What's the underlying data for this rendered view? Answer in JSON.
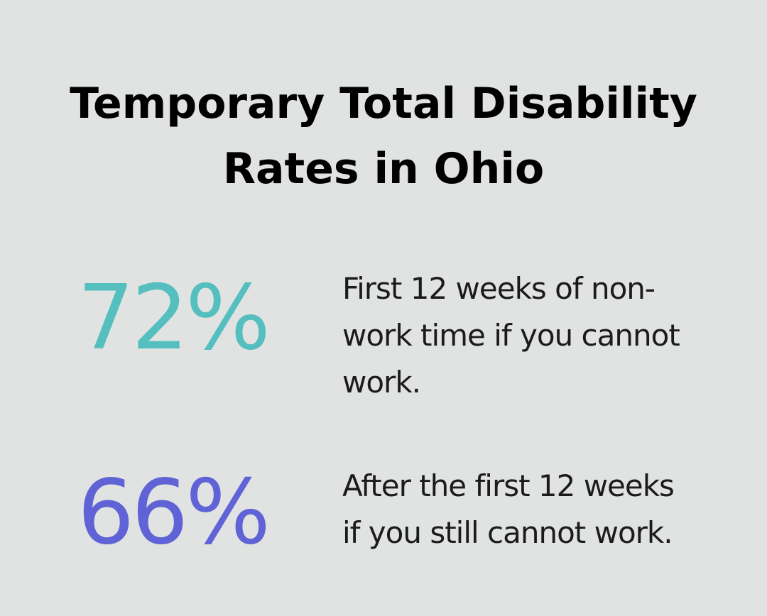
{
  "title": {
    "line1": "Temporary Total Disability",
    "line2": "Rates in Ohio"
  },
  "stats": [
    {
      "value": "72%",
      "color": "#55bfbf",
      "lines": [
        "First 12 weeks of non-",
        "work time if you cannot",
        "work."
      ]
    },
    {
      "value": "66%",
      "color": "#5f63d6",
      "lines": [
        "After the first 12 weeks",
        "if you still cannot work."
      ]
    }
  ]
}
